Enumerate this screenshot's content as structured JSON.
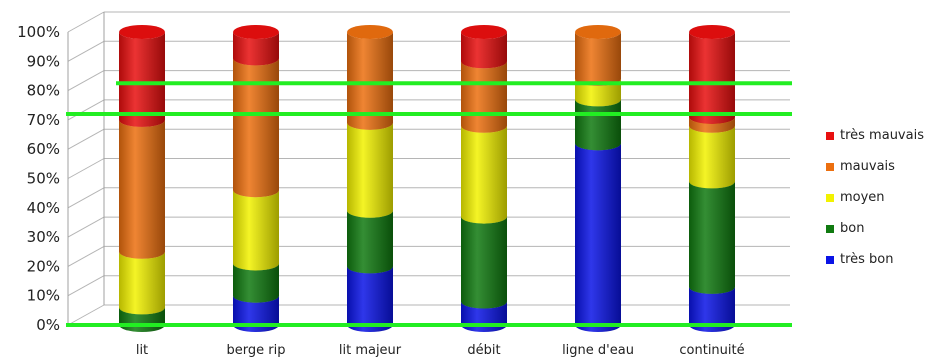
{
  "chart_data": {
    "type": "bar",
    "stacked": true,
    "style": "3d-cylinder",
    "title": "",
    "xlabel": "",
    "ylabel": "",
    "ylim": [
      0,
      100
    ],
    "yticks": [
      "0%",
      "10%",
      "20%",
      "30%",
      "40%",
      "50%",
      "60%",
      "70%",
      "80%",
      "90%",
      "100%"
    ],
    "categories": [
      "lit",
      "berge rip",
      "lit majeur",
      "débit",
      "ligne d'eau",
      "continuité"
    ],
    "series": [
      {
        "name": "très bon",
        "color": "#0a14e6",
        "values": [
          0,
          10,
          20,
          8,
          62,
          13
        ]
      },
      {
        "name": "bon",
        "color": "#107a10",
        "values": [
          6,
          11,
          19,
          29,
          15,
          36
        ]
      },
      {
        "name": "moyen",
        "color": "#f2f200",
        "values": [
          19,
          25,
          30,
          31,
          7,
          19
        ]
      },
      {
        "name": "mauvais",
        "color": "#ec6f0f",
        "values": [
          45,
          45,
          31,
          22,
          16,
          3
        ]
      },
      {
        "name": "très mauvais",
        "color": "#e80f0f",
        "values": [
          30,
          9,
          0,
          10,
          0,
          29
        ]
      }
    ],
    "reference_lines": [
      {
        "value": 82.5,
        "color": "#22ee22"
      },
      {
        "value": 72,
        "color": "#22ee22"
      },
      {
        "value": 0,
        "color": "#22ee22"
      }
    ],
    "grid": true,
    "legend_position": "right",
    "legend_order": [
      "très mauvais",
      "mauvais",
      "moyen",
      "bon",
      "très bon"
    ]
  }
}
